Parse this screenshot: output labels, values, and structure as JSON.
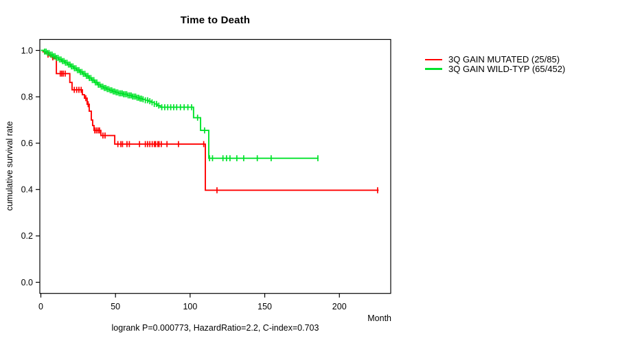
{
  "chart_data": {
    "type": "line",
    "subtype": "kaplan-meier-step-curve",
    "title": "Time to Death",
    "xlabel": "Month",
    "ylabel": "cumulative survival rate",
    "footnote": "logrank P=0.000773, HazardRatio=2.2, C-index=0.703",
    "x_ticks": [
      0,
      50,
      100,
      150,
      200
    ],
    "y_ticks": [
      1.0,
      0.8,
      0.6,
      0.4,
      0.2,
      0.0
    ],
    "xlim": [
      0,
      234
    ],
    "ylim": [
      0,
      1
    ],
    "grid": false,
    "legend_position": "outside-top-right",
    "axis_color": "#000000",
    "series": [
      {
        "name": "3Q GAIN MUTATED (25/85)",
        "color": "#ff0000",
        "end_month": 226.3,
        "points": [
          [
            0,
            1.0
          ],
          [
            1.5,
            0.994
          ],
          [
            3,
            0.988
          ],
          [
            4.5,
            0.982
          ],
          [
            6,
            0.976
          ],
          [
            7.5,
            0.97
          ],
          [
            9,
            0.964
          ],
          [
            10.4,
            0.9
          ],
          [
            19.4,
            0.862
          ],
          [
            20.9,
            0.83
          ],
          [
            27.8,
            0.809
          ],
          [
            29.2,
            0.794
          ],
          [
            31,
            0.768
          ],
          [
            32.4,
            0.738
          ],
          [
            33.8,
            0.7
          ],
          [
            34.7,
            0.676
          ],
          [
            35.6,
            0.655
          ],
          [
            40.2,
            0.633
          ],
          [
            49.5,
            0.596
          ],
          [
            110.2,
            0.397
          ]
        ],
        "censor_months": [
          4.8,
          8,
          13,
          14,
          15,
          16.3,
          22.4,
          24,
          25.5,
          27,
          30.1,
          31.7,
          36.1,
          37.2,
          38.3,
          39.3,
          41.6,
          43,
          51.6,
          53.6,
          54.7,
          57.7,
          59.3,
          66.1,
          70,
          71.5,
          73,
          74.6,
          76.1,
          76.9,
          78.4,
          79.2,
          80.7,
          84.5,
          92.2,
          109.1,
          118,
          225.6
        ]
      },
      {
        "name": "3Q GAIN WILD-TYP (65/452)",
        "color": "#00e22b",
        "end_month": 186,
        "points": [
          [
            0,
            1.0
          ],
          [
            2,
            0.995
          ],
          [
            4,
            0.989
          ],
          [
            6,
            0.982
          ],
          [
            8,
            0.975
          ],
          [
            10,
            0.968
          ],
          [
            12,
            0.961
          ],
          [
            14,
            0.954
          ],
          [
            16,
            0.947
          ],
          [
            18,
            0.939
          ],
          [
            20,
            0.931
          ],
          [
            22,
            0.923
          ],
          [
            24,
            0.915
          ],
          [
            26,
            0.907
          ],
          [
            28,
            0.899
          ],
          [
            30,
            0.89
          ],
          [
            32,
            0.881
          ],
          [
            34,
            0.872
          ],
          [
            36,
            0.862
          ],
          [
            38,
            0.852
          ],
          [
            40,
            0.844
          ],
          [
            42,
            0.838
          ],
          [
            44,
            0.833
          ],
          [
            46,
            0.828
          ],
          [
            48,
            0.823
          ],
          [
            50,
            0.819
          ],
          [
            52,
            0.815
          ],
          [
            55,
            0.811
          ],
          [
            58,
            0.806
          ],
          [
            61,
            0.801
          ],
          [
            64,
            0.796
          ],
          [
            66,
            0.792
          ],
          [
            68,
            0.789
          ],
          [
            70,
            0.785
          ],
          [
            72,
            0.781
          ],
          [
            74,
            0.776
          ],
          [
            76,
            0.769
          ],
          [
            78,
            0.762
          ],
          [
            80,
            0.755
          ],
          [
            102.3,
            0.71
          ],
          [
            107,
            0.655
          ],
          [
            112.5,
            0.535
          ]
        ],
        "censor_months": [
          2.5,
          3.5,
          4.5,
          5.5,
          6.5,
          7.5,
          8.5,
          9.5,
          10.5,
          11.5,
          12.5,
          13.5,
          14.5,
          15.5,
          16.5,
          17.5,
          18.5,
          19.5,
          20.5,
          21.5,
          22.5,
          23.5,
          24.5,
          25.5,
          26.5,
          27.5,
          28.5,
          29.5,
          30.5,
          31.5,
          32.5,
          33.5,
          34.5,
          35.5,
          36.5,
          37.5,
          38.5,
          39.5,
          40.5,
          41.5,
          42.5,
          43.5,
          44.5,
          45.5,
          46.5,
          47.5,
          48.5,
          49.5,
          50.5,
          51.5,
          52.5,
          53.5,
          54.5,
          55.5,
          56.5,
          57.5,
          58.5,
          59.5,
          60.5,
          61.5,
          62.5,
          63.5,
          64.5,
          65.5,
          66.5,
          67.5,
          68.5,
          70,
          71.5,
          73,
          74.5,
          76,
          77.5,
          79,
          81,
          83,
          85,
          87,
          89,
          91,
          93.5,
          96,
          98.5,
          101,
          105,
          109.7,
          113,
          115,
          122,
          124.4,
          126.7,
          131.3,
          135.9,
          145,
          154.3,
          185.6
        ]
      }
    ]
  }
}
